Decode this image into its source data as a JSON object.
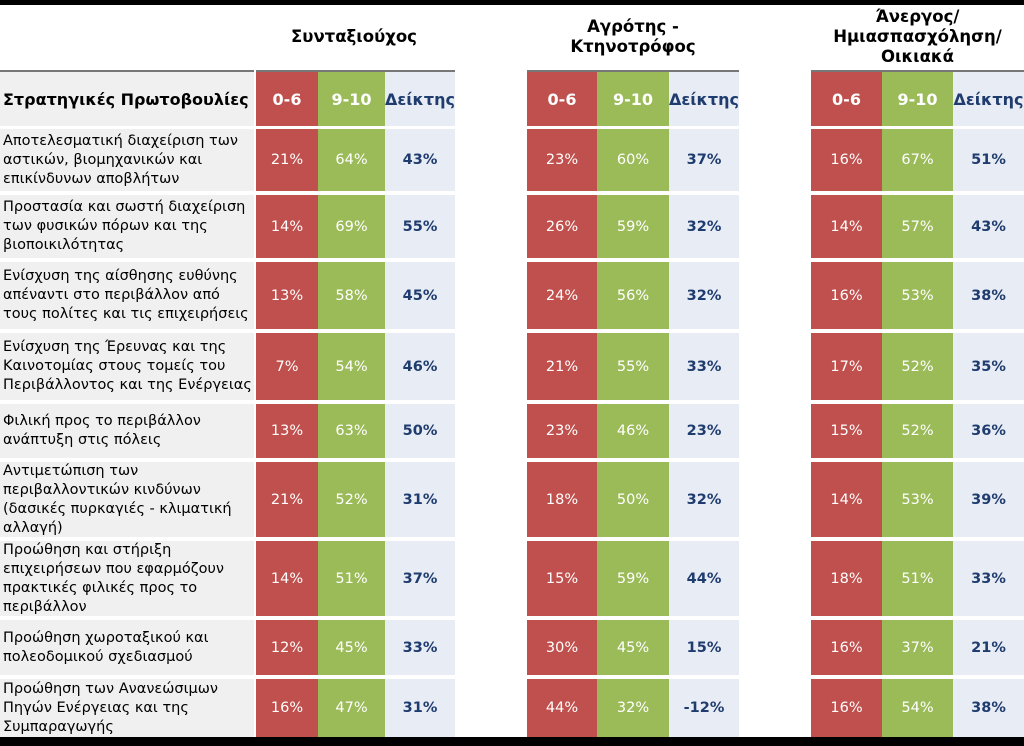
{
  "groups": [
    {
      "title": "Συνταξιούχος"
    },
    {
      "title": "Αγρότης -\nΚτηνοτρόφος"
    },
    {
      "title": "Άνεργος/\nΗμιασπασχόληση/\nΟικιακά"
    }
  ],
  "header": {
    "row_label": "Στρατηγικές Πρωτοβουλίες",
    "col_low": "0-6",
    "col_high": "9-10",
    "col_index": "Δείκτης"
  },
  "rows": [
    {
      "label": "Αποτελεσματική διαχείριση των αστικών, βιομηχανικών και επικίνδυνων αποβλήτων",
      "g": [
        [
          "21%",
          "64%",
          "43%"
        ],
        [
          "23%",
          "60%",
          "37%"
        ],
        [
          "16%",
          "67%",
          "51%"
        ]
      ]
    },
    {
      "label": "Προστασία και σωστή διαχείριση των φυσικών πόρων και της βιοποικιλότητας",
      "g": [
        [
          "14%",
          "69%",
          "55%"
        ],
        [
          "26%",
          "59%",
          "32%"
        ],
        [
          "14%",
          "57%",
          "43%"
        ]
      ]
    },
    {
      "label": "Ενίσχυση της αίσθησης ευθύνης απέναντι στο περιβάλλον από τους πολίτες και τις επιχειρήσεις",
      "g": [
        [
          "13%",
          "58%",
          "45%"
        ],
        [
          "24%",
          "56%",
          "32%"
        ],
        [
          "16%",
          "53%",
          "38%"
        ]
      ]
    },
    {
      "label": "Ενίσχυση της Έρευνας και της Καινοτομίας στους τομείς του Περιβάλλοντος και της Ενέργειας",
      "g": [
        [
          "7%",
          "54%",
          "46%"
        ],
        [
          "21%",
          "55%",
          "33%"
        ],
        [
          "17%",
          "52%",
          "35%"
        ]
      ]
    },
    {
      "label": "Φιλική προς το περιβάλλον ανάπτυξη στις πόλεις",
      "g": [
        [
          "13%",
          "63%",
          "50%"
        ],
        [
          "23%",
          "46%",
          "23%"
        ],
        [
          "15%",
          "52%",
          "36%"
        ]
      ]
    },
    {
      "label": "Αντιμετώπιση των περιβαλλοντικών κινδύνων (δασικές πυρκαγιές - κλιματική αλλαγή)",
      "g": [
        [
          "21%",
          "52%",
          "31%"
        ],
        [
          "18%",
          "50%",
          "32%"
        ],
        [
          "14%",
          "53%",
          "39%"
        ]
      ]
    },
    {
      "label": "Προώθηση και στήριξη επιχειρήσεων που εφαρμόζουν πρακτικές φιλικές προς το περιβάλλον",
      "g": [
        [
          "14%",
          "51%",
          "37%"
        ],
        [
          "15%",
          "59%",
          "44%"
        ],
        [
          "18%",
          "51%",
          "33%"
        ]
      ]
    },
    {
      "label": "Προώθηση χωροταξικού και πολεοδομικού σχεδιασμού",
      "g": [
        [
          "12%",
          "45%",
          "33%"
        ],
        [
          "30%",
          "45%",
          "15%"
        ],
        [
          "16%",
          "37%",
          "21%"
        ]
      ]
    },
    {
      "label": "Προώθηση των Ανανεώσιμων Πηγών Ενέργειας και της Συμπαραγωγής",
      "g": [
        [
          "16%",
          "47%",
          "31%"
        ],
        [
          "44%",
          "32%",
          "-12%"
        ],
        [
          "16%",
          "54%",
          "38%"
        ]
      ]
    }
  ]
}
